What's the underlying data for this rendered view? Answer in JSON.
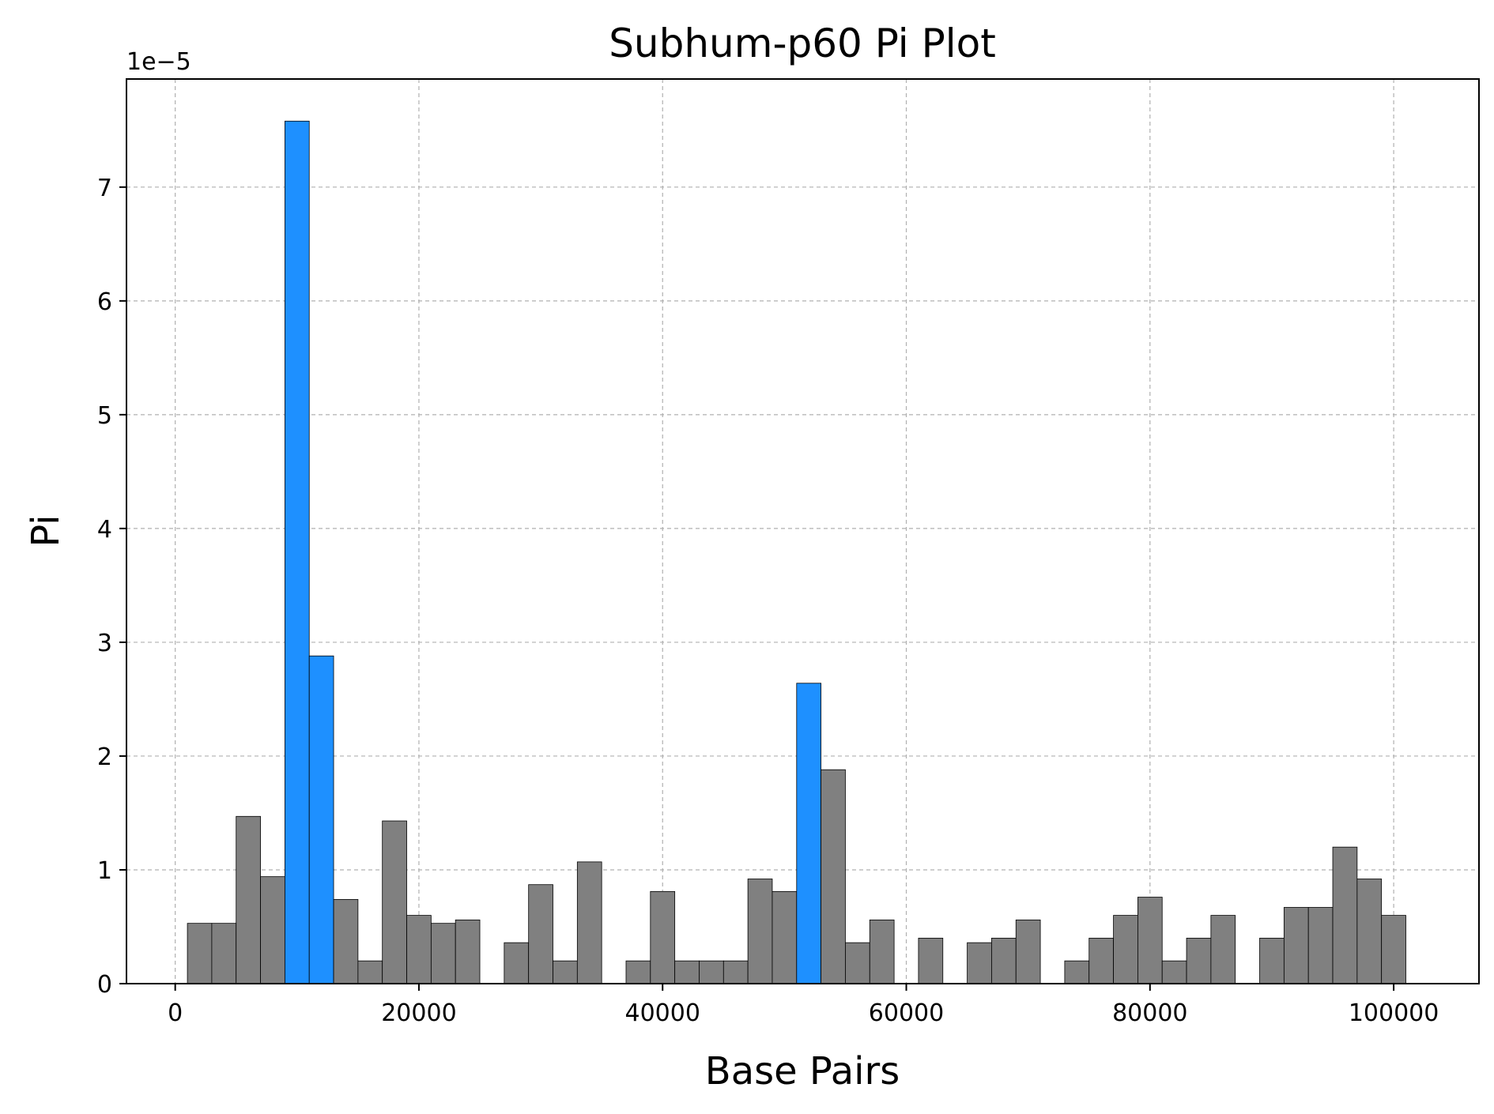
{
  "chart_data": {
    "type": "bar",
    "title": "Subhum-p60 Pi Plot",
    "xlabel": "Base Pairs",
    "ylabel": "Pi",
    "y_offset_label": "1e−5",
    "xlim": [
      -4000,
      107000
    ],
    "ylim": [
      0,
      7.95
    ],
    "bin_width": 2000,
    "grid": true,
    "x_ticks": [
      0,
      20000,
      40000,
      60000,
      80000,
      100000
    ],
    "x_tick_labels": [
      "0",
      "20000",
      "40000",
      "60000",
      "80000",
      "100000"
    ],
    "y_ticks": [
      0,
      1,
      2,
      3,
      4,
      5,
      6,
      7
    ],
    "y_tick_labels": [
      "0",
      "1",
      "2",
      "3",
      "4",
      "5",
      "6",
      "7"
    ],
    "colors": {
      "normal": "#808080",
      "highlight": "#1e90ff",
      "edge": "#000000"
    },
    "bars": [
      {
        "x": 1000,
        "value": 0.53,
        "highlight": false
      },
      {
        "x": 3000,
        "value": 0.53,
        "highlight": false
      },
      {
        "x": 5000,
        "value": 1.47,
        "highlight": false
      },
      {
        "x": 7000,
        "value": 0.94,
        "highlight": false
      },
      {
        "x": 9000,
        "value": 7.58,
        "highlight": true
      },
      {
        "x": 11000,
        "value": 2.88,
        "highlight": true
      },
      {
        "x": 13000,
        "value": 0.74,
        "highlight": false
      },
      {
        "x": 15000,
        "value": 0.2,
        "highlight": false
      },
      {
        "x": 17000,
        "value": 1.43,
        "highlight": false
      },
      {
        "x": 19000,
        "value": 0.6,
        "highlight": false
      },
      {
        "x": 21000,
        "value": 0.53,
        "highlight": false
      },
      {
        "x": 23000,
        "value": 0.56,
        "highlight": false
      },
      {
        "x": 27000,
        "value": 0.36,
        "highlight": false
      },
      {
        "x": 29000,
        "value": 0.87,
        "highlight": false
      },
      {
        "x": 31000,
        "value": 0.2,
        "highlight": false
      },
      {
        "x": 33000,
        "value": 1.07,
        "highlight": false
      },
      {
        "x": 37000,
        "value": 0.2,
        "highlight": false
      },
      {
        "x": 39000,
        "value": 0.81,
        "highlight": false
      },
      {
        "x": 41000,
        "value": 0.2,
        "highlight": false
      },
      {
        "x": 43000,
        "value": 0.2,
        "highlight": false
      },
      {
        "x": 45000,
        "value": 0.2,
        "highlight": false
      },
      {
        "x": 47000,
        "value": 0.92,
        "highlight": false
      },
      {
        "x": 49000,
        "value": 0.81,
        "highlight": false
      },
      {
        "x": 51000,
        "value": 2.64,
        "highlight": true
      },
      {
        "x": 53000,
        "value": 1.88,
        "highlight": false
      },
      {
        "x": 55000,
        "value": 0.36,
        "highlight": false
      },
      {
        "x": 57000,
        "value": 0.56,
        "highlight": false
      },
      {
        "x": 61000,
        "value": 0.4,
        "highlight": false
      },
      {
        "x": 65000,
        "value": 0.36,
        "highlight": false
      },
      {
        "x": 67000,
        "value": 0.4,
        "highlight": false
      },
      {
        "x": 69000,
        "value": 0.56,
        "highlight": false
      },
      {
        "x": 73000,
        "value": 0.2,
        "highlight": false
      },
      {
        "x": 75000,
        "value": 0.4,
        "highlight": false
      },
      {
        "x": 77000,
        "value": 0.6,
        "highlight": false
      },
      {
        "x": 79000,
        "value": 0.76,
        "highlight": false
      },
      {
        "x": 81000,
        "value": 0.2,
        "highlight": false
      },
      {
        "x": 83000,
        "value": 0.4,
        "highlight": false
      },
      {
        "x": 85000,
        "value": 0.6,
        "highlight": false
      },
      {
        "x": 89000,
        "value": 0.4,
        "highlight": false
      },
      {
        "x": 91000,
        "value": 0.67,
        "highlight": false
      },
      {
        "x": 93000,
        "value": 0.67,
        "highlight": false
      },
      {
        "x": 95000,
        "value": 1.2,
        "highlight": false
      },
      {
        "x": 97000,
        "value": 0.92,
        "highlight": false
      },
      {
        "x": 99000,
        "value": 0.6,
        "highlight": false
      }
    ]
  }
}
